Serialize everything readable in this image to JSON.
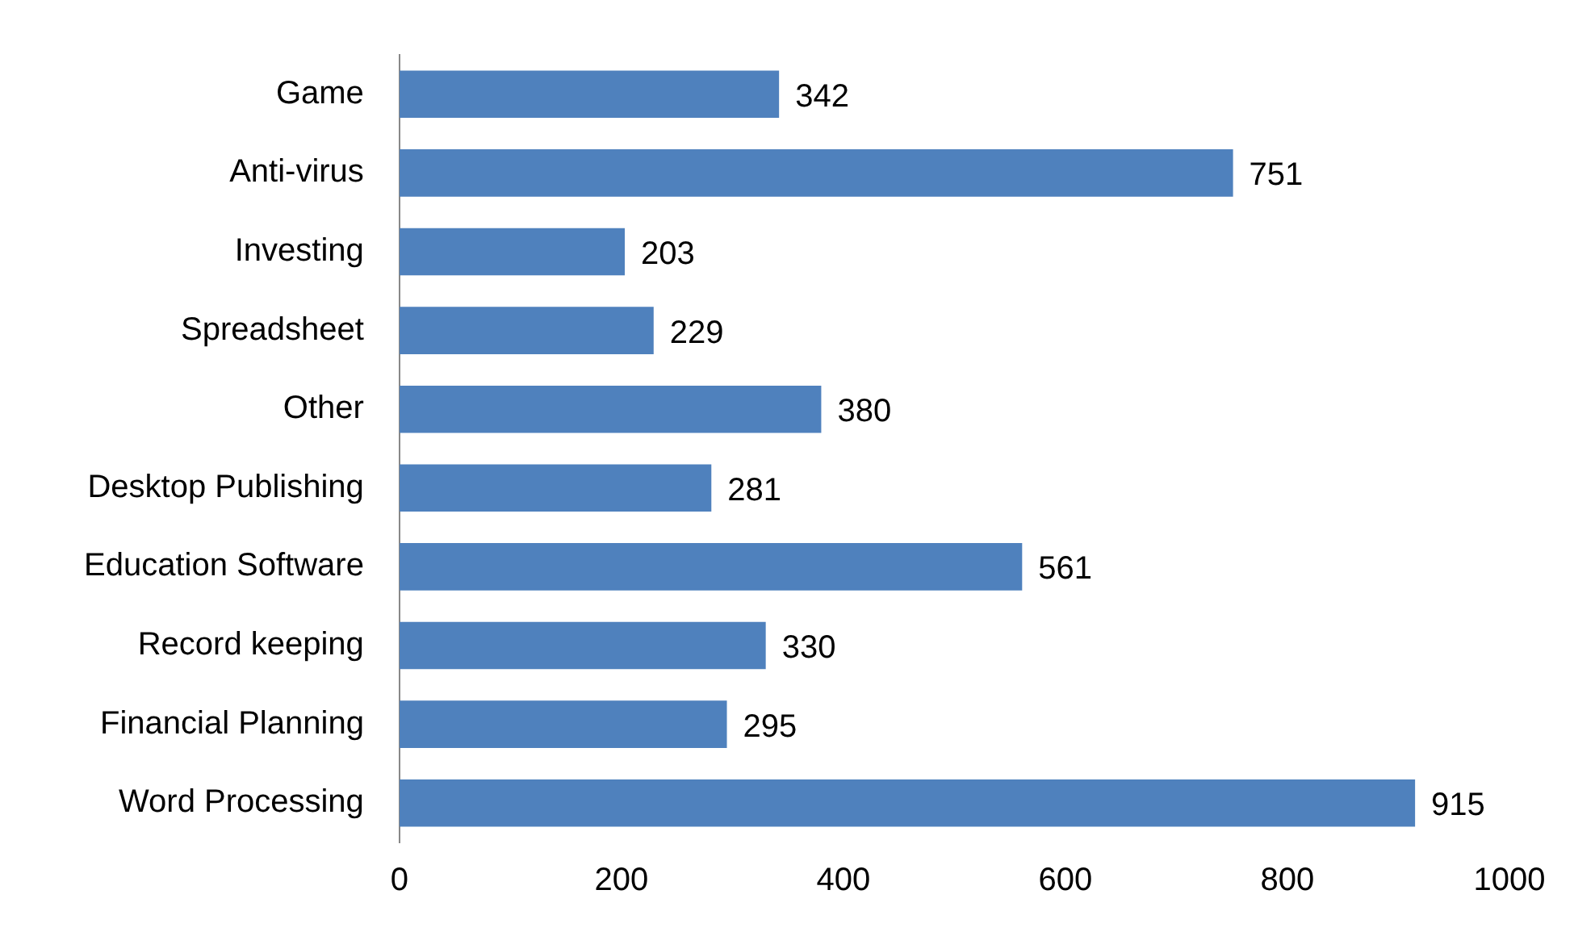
{
  "chart_data": {
    "type": "bar",
    "orientation": "horizontal",
    "categories": [
      "Game",
      "Anti-virus",
      "Investing",
      "Spreadsheet",
      "Other",
      "Desktop Publishing",
      "Education Software",
      "Record keeping",
      "Financial Planning",
      "Word Processing"
    ],
    "values": [
      342,
      751,
      203,
      229,
      380,
      281,
      561,
      330,
      295,
      915
    ],
    "color": "#4f81bd",
    "xlim": [
      0,
      1000
    ],
    "xticks": [
      0,
      200,
      400,
      600,
      800,
      1000
    ],
    "grid": false,
    "legend": false,
    "data_labels": true
  }
}
